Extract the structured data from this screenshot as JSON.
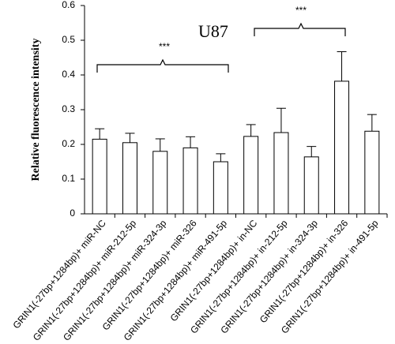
{
  "chart_data": {
    "type": "bar",
    "title": "U87",
    "y_label": "Relative fluorescence intensity",
    "categories": [
      "GRIN1(-27bp+1284bp)+ miR-NC",
      "GRIN1(-27bp+1284bp)+ miR-212-5p",
      "GRIN1(-27bp+1284bp)+ miR-324-3p",
      "GRIN1(-27bp+1284bp)+ miR-326",
      "GRIN1(-27bp+1284bp)+ miR-491-5p",
      "GRIN1(-27bp+1284bp)+ in-NC",
      "GRIN1(-27bp+1284bp)+ in-212-5p",
      "GRIN1(-27bp+1284bp)+ in-324-3p",
      "GRIN1(-27bp+1284bp)+ in-326",
      "GRIN1(-27bp+1284bp)+ in-491-5p"
    ],
    "values": [
      0.215,
      0.205,
      0.18,
      0.19,
      0.15,
      0.223,
      0.234,
      0.164,
      0.382,
      0.238
    ],
    "errors": [
      0.03,
      0.027,
      0.036,
      0.032,
      0.023,
      0.034,
      0.07,
      0.03,
      0.085,
      0.048
    ],
    "color": "#ffffff",
    "ylim": [
      0,
      0.6
    ],
    "yticks": [
      0,
      0.1,
      0.2,
      0.3,
      0.4,
      0.5,
      0.6
    ],
    "annotations": [
      "***",
      "***"
    ]
  }
}
